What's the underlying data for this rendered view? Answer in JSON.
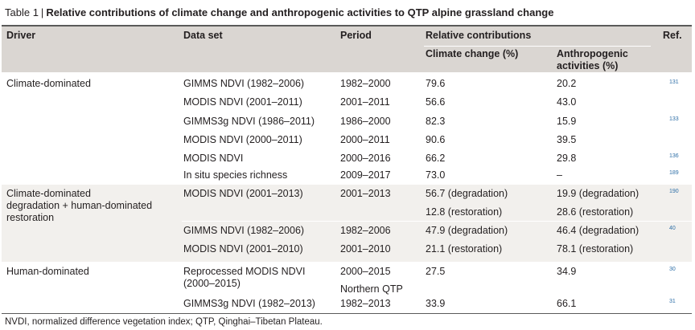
{
  "caption": {
    "label": "Table 1",
    "separator": "|",
    "title": "Relative contributions of climate change and anthropogenic activities to QTP alpine grassland change"
  },
  "header": {
    "driver": "Driver",
    "dataset": "Data set",
    "period": "Period",
    "relative": "Relative contributions",
    "climate": "Climate change (%)",
    "anthro_line1": "Anthropogenic",
    "anthro_line2": "activities (%)",
    "ref": "Ref."
  },
  "groups": [
    {
      "driver": [
        "Climate-dominated"
      ],
      "rows": [
        {
          "dataset": "GIMMS NDVI (1982–2006)",
          "period": "1982–2000",
          "climate": "79.6",
          "anthro": "20.2",
          "ref": "131"
        },
        {
          "dataset": "MODIS NDVI (2001–2011)",
          "period": "2001–2011",
          "climate": "56.6",
          "anthro": "43.0",
          "ref": ""
        },
        {
          "dataset": "GIMMS3g NDVI (1986–2011)",
          "period": "1986–2000",
          "climate": "82.3",
          "anthro": "15.9",
          "ref": "133"
        },
        {
          "dataset": "MODIS NDVI (2000–2011)",
          "period": "2000–2011",
          "climate": "90.6",
          "anthro": "39.5",
          "ref": ""
        },
        {
          "dataset": "MODIS NDVI",
          "period": "2000–2016",
          "climate": "66.2",
          "anthro": "29.8",
          "ref": "136"
        },
        {
          "dataset": "In situ species richness",
          "period": "2009–2017",
          "climate": "73.0",
          "anthro": "–",
          "ref": "189"
        }
      ]
    },
    {
      "driver": [
        "Climate-dominated",
        "degradation + human-dominated",
        "restoration"
      ],
      "rows": [
        {
          "dataset": "MODIS NDVI (2001–2013)",
          "period": "2001–2013",
          "climate": "56.7 (degradation)",
          "anthro": "19.9 (degradation)",
          "ref": "190"
        },
        {
          "dataset": "",
          "period": "",
          "climate": "12.8 (restoration)",
          "anthro": "28.6 (restoration)",
          "ref": ""
        },
        {
          "dataset": "GIMMS NDVI (1982–2006)",
          "period": "1982–2006",
          "climate": "47.9 (degradation)",
          "anthro": "46.4 (degradation)",
          "ref": "40"
        },
        {
          "dataset": "MODIS NDVI (2001–2010)",
          "period": "2001–2010",
          "climate": "21.1 (restoration)",
          "anthro": "78.1 (restoration)",
          "ref": ""
        }
      ]
    },
    {
      "driver": [
        "Human-dominated"
      ],
      "rows": [
        {
          "dataset": "Reprocessed MODIS NDVI",
          "dataset2": "(2000–2015)",
          "period": "2000–2015",
          "period2": "Northern QTP",
          "climate": "27.5",
          "anthro": "34.9",
          "ref": "30"
        },
        {
          "dataset": "GIMMS3g NDVI (1982–2013)",
          "period": "1982–2013",
          "climate": "33.9",
          "anthro": "66.1",
          "ref": "31"
        }
      ]
    }
  ],
  "footnote": "NVDI, normalized difference vegetation index; QTP, Qinghai–Tibetan Plateau."
}
